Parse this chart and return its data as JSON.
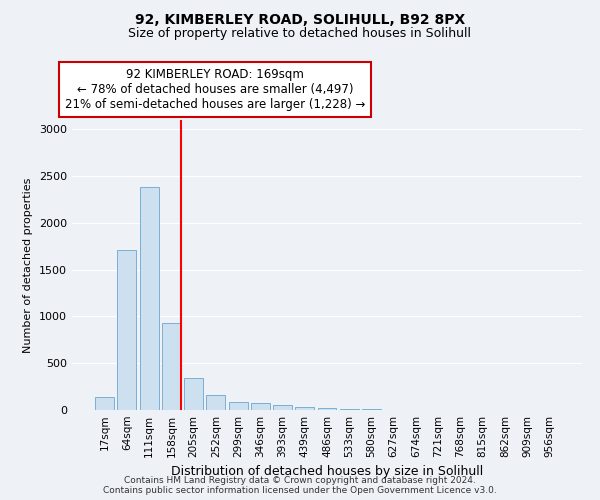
{
  "title1": "92, KIMBERLEY ROAD, SOLIHULL, B92 8PX",
  "title2": "Size of property relative to detached houses in Solihull",
  "xlabel": "Distribution of detached houses by size in Solihull",
  "ylabel": "Number of detached properties",
  "bin_labels": [
    "17sqm",
    "64sqm",
    "111sqm",
    "158sqm",
    "205sqm",
    "252sqm",
    "299sqm",
    "346sqm",
    "393sqm",
    "439sqm",
    "486sqm",
    "533sqm",
    "580sqm",
    "627sqm",
    "674sqm",
    "721sqm",
    "768sqm",
    "815sqm",
    "862sqm",
    "909sqm",
    "956sqm"
  ],
  "bar_values": [
    140,
    1710,
    2380,
    930,
    340,
    165,
    90,
    70,
    50,
    30,
    20,
    15,
    10,
    5,
    3,
    2,
    1,
    1,
    0,
    0,
    0
  ],
  "bar_color": "#cce0f0",
  "bar_edge_color": "#7aafd4",
  "red_line_index": 3,
  "annotation_line1": "92 KIMBERLEY ROAD: 169sqm",
  "annotation_line2": "← 78% of detached houses are smaller (4,497)",
  "annotation_line3": "21% of semi-detached houses are larger (1,228) →",
  "annotation_box_color": "#ffffff",
  "annotation_box_edge_color": "#cc0000",
  "ylim": [
    0,
    3100
  ],
  "yticks": [
    0,
    500,
    1000,
    1500,
    2000,
    2500,
    3000
  ],
  "footer1": "Contains HM Land Registry data © Crown copyright and database right 2024.",
  "footer2": "Contains public sector information licensed under the Open Government Licence v3.0.",
  "background_color": "#eef2f7",
  "plot_bg_color": "#eef2f7",
  "grid_color": "#ffffff",
  "title1_fontsize": 10,
  "title2_fontsize": 9,
  "xlabel_fontsize": 9,
  "ylabel_fontsize": 8,
  "tick_fontsize": 8,
  "xtick_fontsize": 7.5,
  "footer_fontsize": 6.5,
  "annot_fontsize": 8.5
}
